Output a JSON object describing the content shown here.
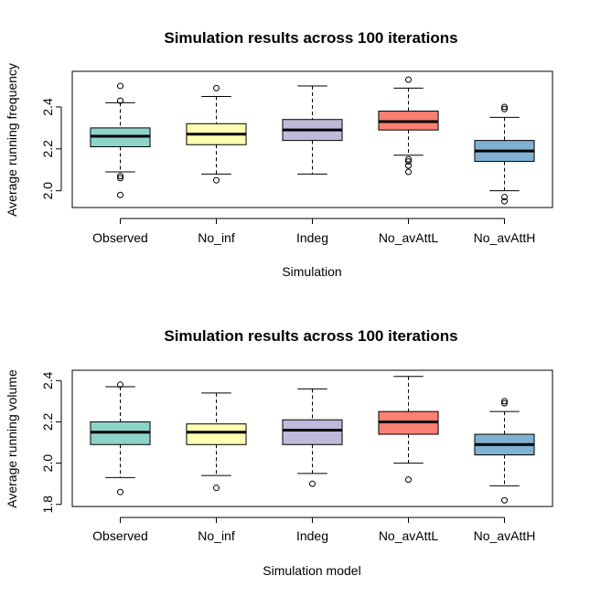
{
  "chart_data": [
    {
      "type": "boxplot",
      "title": "Simulation results across 100 iterations",
      "xlabel": "Simulation",
      "ylabel": "Average running frequency",
      "categories": [
        "Observed",
        "No_inf",
        "Indeg",
        "No_avAttL",
        "No_avAttH"
      ],
      "colors": [
        "#8DD3C7",
        "#FFFFB3",
        "#BEBADA",
        "#FB8072",
        "#80B1D3"
      ],
      "ylim": [
        1.92,
        2.57
      ],
      "yticks": [
        {
          "value": 2.0,
          "label": "2.0"
        },
        {
          "value": 2.2,
          "label": "2.2"
        },
        {
          "value": 2.4,
          "label": "2.4"
        }
      ],
      "boxes": [
        {
          "lower_whisker": 2.09,
          "q1": 2.21,
          "median": 2.26,
          "q3": 2.3,
          "upper_whisker": 2.42,
          "outliers": [
            2.5,
            2.43,
            2.07,
            2.06,
            1.98
          ]
        },
        {
          "lower_whisker": 2.08,
          "q1": 2.22,
          "median": 2.27,
          "q3": 2.32,
          "upper_whisker": 2.45,
          "outliers": [
            2.49,
            2.05
          ]
        },
        {
          "lower_whisker": 2.08,
          "q1": 2.24,
          "median": 2.29,
          "q3": 2.34,
          "upper_whisker": 2.5,
          "outliers": []
        },
        {
          "lower_whisker": 2.17,
          "q1": 2.29,
          "median": 2.33,
          "q3": 2.38,
          "upper_whisker": 2.49,
          "outliers": [
            2.53,
            2.15,
            2.14,
            2.12,
            2.09
          ]
        },
        {
          "lower_whisker": 2.0,
          "q1": 2.14,
          "median": 2.19,
          "q3": 2.24,
          "upper_whisker": 2.35,
          "outliers": [
            2.4,
            2.39,
            1.97,
            1.95
          ]
        }
      ]
    },
    {
      "type": "boxplot",
      "title": "Simulation results across 100 iterations",
      "xlabel": "Simulation model",
      "ylabel": "Average running volume",
      "categories": [
        "Observed",
        "No_inf",
        "Indeg",
        "No_avAttL",
        "No_avAttH"
      ],
      "colors": [
        "#8DD3C7",
        "#FFFFB3",
        "#BEBADA",
        "#FB8072",
        "#80B1D3"
      ],
      "ylim": [
        1.79,
        2.45
      ],
      "yticks": [
        {
          "value": 1.8,
          "label": "1.8"
        },
        {
          "value": 2.0,
          "label": "2.0"
        },
        {
          "value": 2.2,
          "label": "2.2"
        },
        {
          "value": 2.4,
          "label": "2.4"
        }
      ],
      "boxes": [
        {
          "lower_whisker": 1.93,
          "q1": 2.09,
          "median": 2.15,
          "q3": 2.2,
          "upper_whisker": 2.37,
          "outliers": [
            2.38,
            1.86
          ]
        },
        {
          "lower_whisker": 1.94,
          "q1": 2.09,
          "median": 2.15,
          "q3": 2.19,
          "upper_whisker": 2.34,
          "outliers": [
            1.88
          ]
        },
        {
          "lower_whisker": 1.95,
          "q1": 2.09,
          "median": 2.16,
          "q3": 2.21,
          "upper_whisker": 2.36,
          "outliers": [
            1.9
          ]
        },
        {
          "lower_whisker": 2.0,
          "q1": 2.14,
          "median": 2.2,
          "q3": 2.25,
          "upper_whisker": 2.42,
          "outliers": [
            1.92
          ]
        },
        {
          "lower_whisker": 1.89,
          "q1": 2.04,
          "median": 2.09,
          "q3": 2.14,
          "upper_whisker": 2.25,
          "outliers": [
            2.3,
            2.29,
            1.82
          ]
        }
      ]
    }
  ]
}
